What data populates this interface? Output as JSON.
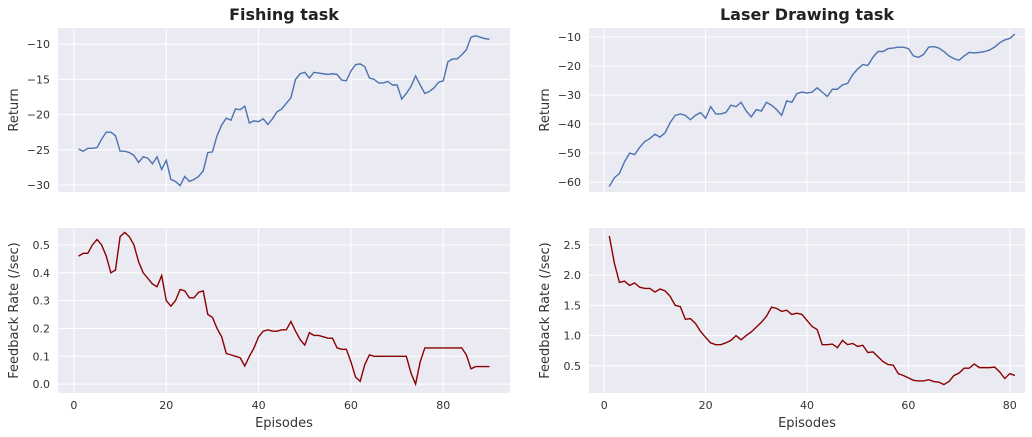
{
  "chart_data": [
    {
      "type": "line",
      "title": "Fishing task",
      "ylabel": "Return",
      "x": [
        1,
        2,
        3,
        4,
        5,
        6,
        7,
        8,
        9,
        10,
        11,
        12,
        13,
        14,
        15,
        16,
        17,
        18,
        19,
        20,
        21,
        22,
        23,
        24,
        25,
        26,
        27,
        28,
        29,
        30,
        31,
        32,
        33,
        34,
        35,
        36,
        37,
        38,
        39,
        40,
        41,
        42,
        43,
        44,
        45,
        46,
        47,
        48,
        49,
        50,
        51,
        52,
        53,
        54,
        55,
        56,
        57,
        58,
        59,
        60,
        61,
        62,
        63,
        64,
        65,
        66,
        67,
        68,
        69,
        70,
        71,
        72,
        73,
        74,
        75,
        76,
        77,
        78,
        79,
        80,
        81,
        82,
        83,
        84,
        85,
        86,
        87,
        88,
        89,
        90
      ],
      "series": [
        {
          "color": "#4c72b0",
          "values": [
            -24.9,
            -25.2,
            -24.8,
            -24.8,
            -24.7,
            -23.5,
            -22.5,
            -22.5,
            -23,
            -25.2,
            -25.2,
            -25.4,
            -25.8,
            -26.8,
            -26,
            -26.2,
            -27,
            -26,
            -27.8,
            -26.5,
            -29.2,
            -29.5,
            -30.1,
            -28.8,
            -29.5,
            -29.2,
            -28.8,
            -28,
            -25.4,
            -25.3,
            -23,
            -21.5,
            -20.5,
            -20.8,
            -19.2,
            -19.3,
            -18.8,
            -21.2,
            -20.9,
            -21,
            -20.6,
            -21.4,
            -20.6,
            -19.6,
            -19.2,
            -18.4,
            -17.6,
            -15,
            -14.2,
            -14,
            -14.8,
            -14,
            -14.1,
            -14.2,
            -14.3,
            -14.2,
            -14.3,
            -15.1,
            -15.2,
            -13.8,
            -12.9,
            -12.8,
            -13.2,
            -14.8,
            -15,
            -15.5,
            -15.5,
            -15.3,
            -15.8,
            -15.8,
            -17.8,
            -17,
            -16,
            -14.5,
            -15.8,
            -17,
            -16.7,
            -16.2,
            -15.4,
            -15.2,
            -12.5,
            -12.1,
            -12.1,
            -11.5,
            -10.8,
            -9,
            -8.8,
            -9,
            -9.2,
            -9.3
          ]
        }
      ],
      "xlim": [
        -3.45,
        94.45
      ],
      "xticks": [
        0,
        20,
        40,
        60,
        80
      ],
      "xtick_labels": false,
      "ylim": [
        -31,
        -7.7
      ],
      "yticks": [
        {
          "value": -30,
          "label": "−30"
        },
        {
          "value": -25,
          "label": "−25"
        },
        {
          "value": -20,
          "label": "−20"
        },
        {
          "value": -15,
          "label": "−15"
        },
        {
          "value": -10,
          "label": "−10"
        }
      ],
      "grid": true
    },
    {
      "type": "line",
      "title": "Laser Drawing task",
      "ylabel": "Return",
      "x": [
        1,
        2,
        3,
        4,
        5,
        6,
        7,
        8,
        9,
        10,
        11,
        12,
        13,
        14,
        15,
        16,
        17,
        18,
        19,
        20,
        21,
        22,
        23,
        24,
        25,
        26,
        27,
        28,
        29,
        30,
        31,
        32,
        33,
        34,
        35,
        36,
        37,
        38,
        39,
        40,
        41,
        42,
        43,
        44,
        45,
        46,
        47,
        48,
        49,
        50,
        51,
        52,
        53,
        54,
        55,
        56,
        57,
        58,
        59,
        60,
        61,
        62,
        63,
        64,
        65,
        66,
        67,
        68,
        69,
        70,
        71,
        72,
        73,
        74,
        75,
        76,
        77,
        78,
        79,
        80,
        81
      ],
      "series": [
        {
          "color": "#4c72b0",
          "values": [
            -61.5,
            -58.5,
            -57,
            -53,
            -50,
            -50.5,
            -48,
            -46,
            -45,
            -43.5,
            -44.5,
            -43,
            -39.5,
            -37,
            -36.5,
            -37,
            -38.5,
            -37,
            -36,
            -38,
            -34,
            -36.5,
            -36.5,
            -36,
            -33.5,
            -34,
            -32.5,
            -35.5,
            -37.5,
            -35,
            -35.5,
            -32.5,
            -33.5,
            -35,
            -37,
            -32,
            -32.5,
            -29.5,
            -29,
            -29.3,
            -29,
            -27.5,
            -29,
            -30.5,
            -28,
            -28,
            -26.5,
            -26,
            -23,
            -21,
            -19.5,
            -19.8,
            -17,
            -15,
            -15,
            -14,
            -13.8,
            -13.5,
            -13.5,
            -14,
            -16.5,
            -17,
            -16,
            -13.5,
            -13.3,
            -13.8,
            -15,
            -16.5,
            -17.5,
            -18,
            -16.5,
            -15.3,
            -15.5,
            -15.3,
            -15,
            -14.5,
            -13.5,
            -12,
            -11,
            -10.5,
            -9
          ]
        }
      ],
      "xlim": [
        -3,
        83
      ],
      "xticks": [
        0,
        20,
        40,
        60,
        80
      ],
      "xtick_labels": false,
      "ylim": [
        -63.4,
        -6.9
      ],
      "yticks": [
        {
          "value": -60,
          "label": "−60"
        },
        {
          "value": -50,
          "label": "−50"
        },
        {
          "value": -40,
          "label": "−40"
        },
        {
          "value": -30,
          "label": "−30"
        },
        {
          "value": -20,
          "label": "−20"
        },
        {
          "value": -10,
          "label": "−10"
        }
      ],
      "grid": true
    },
    {
      "type": "line",
      "xlabel": "Episodes",
      "ylabel": "Feedback Rate (/sec)",
      "x": [
        1,
        2,
        3,
        4,
        5,
        6,
        7,
        8,
        9,
        10,
        11,
        12,
        13,
        14,
        15,
        16,
        17,
        18,
        19,
        20,
        21,
        22,
        23,
        24,
        25,
        26,
        27,
        28,
        29,
        30,
        31,
        32,
        33,
        34,
        35,
        36,
        37,
        38,
        39,
        40,
        41,
        42,
        43,
        44,
        45,
        46,
        47,
        48,
        49,
        50,
        51,
        52,
        53,
        54,
        55,
        56,
        57,
        58,
        59,
        60,
        61,
        62,
        63,
        64,
        65,
        66,
        67,
        68,
        69,
        70,
        71,
        72,
        73,
        74,
        75,
        76,
        77,
        78,
        79,
        80,
        81,
        82,
        83,
        84,
        85,
        86,
        87,
        88,
        89,
        90
      ],
      "series": [
        {
          "color": "#8b0000",
          "values": [
            0.46,
            0.47,
            0.47,
            0.5,
            0.52,
            0.5,
            0.46,
            0.4,
            0.41,
            0.53,
            0.545,
            0.53,
            0.5,
            0.44,
            0.4,
            0.38,
            0.36,
            0.35,
            0.39,
            0.3,
            0.28,
            0.3,
            0.34,
            0.335,
            0.31,
            0.31,
            0.33,
            0.335,
            0.25,
            0.24,
            0.2,
            0.17,
            0.11,
            0.105,
            0.1,
            0.095,
            0.065,
            0.1,
            0.13,
            0.17,
            0.19,
            0.195,
            0.19,
            0.19,
            0.195,
            0.195,
            0.225,
            0.19,
            0.16,
            0.14,
            0.185,
            0.175,
            0.175,
            0.17,
            0.165,
            0.165,
            0.13,
            0.125,
            0.125,
            0.08,
            0.025,
            0.01,
            0.07,
            0.105,
            0.1,
            0.1,
            0.1,
            0.1,
            0.1,
            0.1,
            0.1,
            0.1,
            0.04,
            0.0,
            0.08,
            0.13,
            0.13,
            0.13,
            0.13,
            0.13,
            0.13,
            0.13,
            0.13,
            0.13,
            0.105,
            0.055,
            0.063,
            0.063,
            0.063,
            0.063
          ]
        }
      ],
      "xlim": [
        -3.45,
        94.45
      ],
      "xticks": [
        0,
        20,
        40,
        60,
        80
      ],
      "xtick_labels": true,
      "ylim": [
        -0.032,
        0.561
      ],
      "yticks": [
        {
          "value": 0,
          "label": "0.0"
        },
        0.1,
        0.2,
        0.3,
        0.4,
        0.5
      ],
      "grid": true
    },
    {
      "type": "line",
      "xlabel": "Episodes",
      "ylabel": "Feedback Rate (/sec)",
      "x": [
        1,
        2,
        3,
        4,
        5,
        6,
        7,
        8,
        9,
        10,
        11,
        12,
        13,
        14,
        15,
        16,
        17,
        18,
        19,
        20,
        21,
        22,
        23,
        24,
        25,
        26,
        27,
        28,
        29,
        30,
        31,
        32,
        33,
        34,
        35,
        36,
        37,
        38,
        39,
        40,
        41,
        42,
        43,
        44,
        45,
        46,
        47,
        48,
        49,
        50,
        51,
        52,
        53,
        54,
        55,
        56,
        57,
        58,
        59,
        60,
        61,
        62,
        63,
        64,
        65,
        66,
        67,
        68,
        69,
        70,
        71,
        72,
        73,
        74,
        75,
        76,
        77,
        78,
        79,
        80,
        81
      ],
      "series": [
        {
          "color": "#8b0000",
          "values": [
            2.65,
            2.2,
            1.88,
            1.9,
            1.83,
            1.87,
            1.8,
            1.78,
            1.78,
            1.72,
            1.77,
            1.74,
            1.65,
            1.5,
            1.48,
            1.27,
            1.28,
            1.2,
            1.07,
            0.97,
            0.88,
            0.85,
            0.85,
            0.88,
            0.92,
            1.0,
            0.93,
            1.0,
            1.06,
            1.14,
            1.22,
            1.32,
            1.47,
            1.45,
            1.4,
            1.42,
            1.35,
            1.37,
            1.35,
            1.25,
            1.15,
            1.1,
            0.85,
            0.85,
            0.86,
            0.8,
            0.92,
            0.85,
            0.87,
            0.82,
            0.84,
            0.72,
            0.73,
            0.65,
            0.57,
            0.52,
            0.51,
            0.37,
            0.34,
            0.3,
            0.26,
            0.25,
            0.25,
            0.27,
            0.24,
            0.23,
            0.19,
            0.24,
            0.34,
            0.38,
            0.46,
            0.46,
            0.53,
            0.47,
            0.47,
            0.47,
            0.48,
            0.4,
            0.29,
            0.37,
            0.34
          ]
        }
      ],
      "xlim": [
        -3,
        83
      ],
      "xticks": [
        0,
        20,
        40,
        60,
        80
      ],
      "xtick_labels": true,
      "ylim": [
        0.05,
        2.78
      ],
      "yticks": [
        0.5,
        {
          "value": 1,
          "label": "1.0"
        },
        1.5,
        {
          "value": 2,
          "label": "2.0"
        },
        2.5
      ],
      "grid": true
    }
  ]
}
